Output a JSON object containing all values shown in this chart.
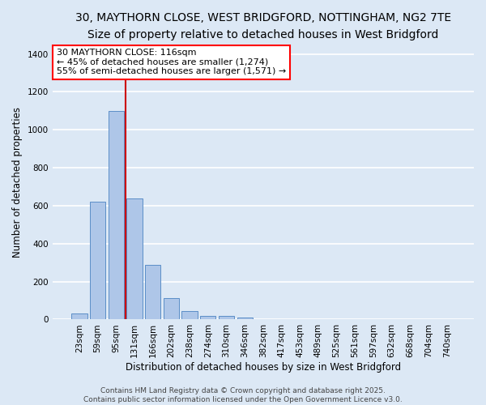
{
  "title_line1": "30, MAYTHORN CLOSE, WEST BRIDGFORD, NOTTINGHAM, NG2 7TE",
  "title_line2": "Size of property relative to detached houses in West Bridgford",
  "xlabel": "Distribution of detached houses by size in West Bridgford",
  "ylabel": "Number of detached properties",
  "categories": [
    "23sqm",
    "59sqm",
    "95sqm",
    "131sqm",
    "166sqm",
    "202sqm",
    "238sqm",
    "274sqm",
    "310sqm",
    "346sqm",
    "382sqm",
    "417sqm",
    "453sqm",
    "489sqm",
    "525sqm",
    "561sqm",
    "597sqm",
    "632sqm",
    "668sqm",
    "704sqm",
    "740sqm"
  ],
  "values": [
    30,
    620,
    1100,
    640,
    290,
    115,
    45,
    20,
    20,
    10,
    0,
    0,
    0,
    0,
    0,
    0,
    0,
    0,
    0,
    0,
    0
  ],
  "bar_color": "#aec6e8",
  "bar_edge_color": "#5b8ec7",
  "background_color": "#dce8f5",
  "grid_color": "#ffffff",
  "vline_index": 2.5,
  "vline_color": "#cc0000",
  "annotation_line1": "30 MAYTHORN CLOSE: 116sqm",
  "annotation_line2": "← 45% of detached houses are smaller (1,274)",
  "annotation_line3": "55% of semi-detached houses are larger (1,571) →",
  "ylim": [
    0,
    1450
  ],
  "yticks": [
    0,
    200,
    400,
    600,
    800,
    1000,
    1200,
    1400
  ],
  "title_fontsize": 10,
  "subtitle_fontsize": 9,
  "axis_label_fontsize": 8.5,
  "tick_fontsize": 7.5,
  "annotation_fontsize": 8,
  "footer_fontsize": 6.5
}
